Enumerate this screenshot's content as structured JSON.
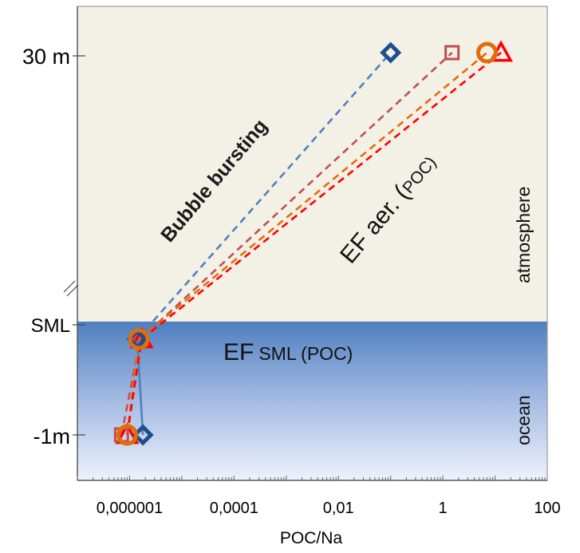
{
  "chart_data": {
    "type": "line",
    "title": "",
    "xlabel": "POC/Na",
    "ylabel": "",
    "x_scale": "log",
    "xlim": [
      1e-07,
      100
    ],
    "x_ticks": [
      {
        "value": 1e-06,
        "label": "0,000001"
      },
      {
        "value": 0.0001,
        "label": "0,0001"
      },
      {
        "value": 0.01,
        "label": "0,01"
      },
      {
        "value": 1,
        "label": "1"
      },
      {
        "value": 100,
        "label": "100"
      }
    ],
    "y_levels": [
      {
        "key": "air",
        "label": "30 m"
      },
      {
        "key": "sml",
        "label": "SML"
      },
      {
        "key": "deep",
        "label": "-1m"
      }
    ],
    "series": [
      {
        "marker": "diamond",
        "color": "#1F4E8C",
        "line_color": "#4F81BD",
        "deep": 1.8e-06,
        "sml": 1.4e-06,
        "air": 0.1
      },
      {
        "marker": "square",
        "color": "#C0504D",
        "line_color": "#C0504D",
        "deep": 7e-07,
        "sml": 1.6e-06,
        "air": 1.5
      },
      {
        "marker": "circle",
        "color": "#E36C0A",
        "line_color": "#E36C0A",
        "deep": 9e-07,
        "sml": 1.5e-06,
        "air": 7
      },
      {
        "marker": "triangle",
        "color": "#FF0000",
        "line_color": "#FF0000",
        "deep": 9e-07,
        "sml": 1.7e-06,
        "air": 13
      }
    ],
    "annotations": {
      "bubble": "Bubble bursting",
      "ef_aer": "EF aer. (",
      "ef_aer_poc": "POC)",
      "ef_sml": "EF",
      "ef_sml_sub": "SML (POC)",
      "atmosphere": "atmosphere",
      "ocean": "ocean"
    },
    "colors": {
      "atmosphere_bg": "#F3F0E6",
      "ocean_top": "#4F7FC0",
      "ocean_bottom": "#EEF2FB"
    }
  }
}
